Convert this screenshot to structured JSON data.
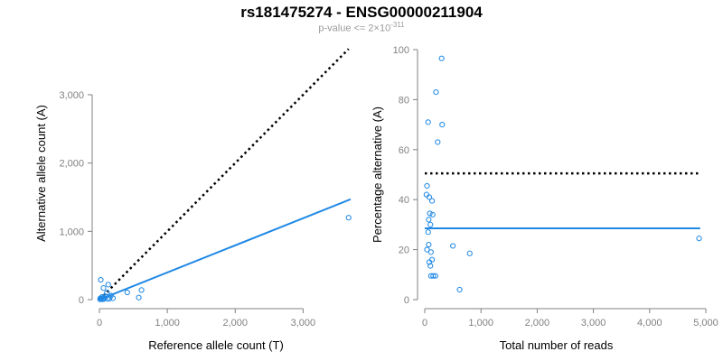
{
  "header": {
    "title": "rs181475274 - ENSG00000211904",
    "pvalue_prefix": "p-value <= 2×10",
    "pvalue_exponent": "-311"
  },
  "colors": {
    "series": "#1f88e5",
    "reference_line": "#000000",
    "axis": "#808080",
    "tick_label": "#808080"
  },
  "chart_data": [
    {
      "type": "scatter",
      "title": "",
      "xlabel": "Reference allele count (T)",
      "ylabel": "Alternative allele count (A)",
      "xlim": [
        0,
        3700
      ],
      "ylim": [
        0,
        3700
      ],
      "xticks": [
        0,
        1000,
        2000,
        3000
      ],
      "xtick_labels": [
        "0",
        "1,000",
        "2,000",
        "3,000"
      ],
      "yticks": [
        0,
        1000,
        2000,
        3000
      ],
      "ytick_labels": [
        "0",
        "1,000",
        "2,000",
        "3,000"
      ],
      "grid": false,
      "legend": "none",
      "points": [
        {
          "x": 3670,
          "y": 1200
        },
        {
          "x": 20,
          "y": 290
        },
        {
          "x": 130,
          "y": 220
        },
        {
          "x": 60,
          "y": 170
        },
        {
          "x": 620,
          "y": 140
        },
        {
          "x": 410,
          "y": 105
        },
        {
          "x": 110,
          "y": 100
        },
        {
          "x": 170,
          "y": 60
        },
        {
          "x": 90,
          "y": 50
        },
        {
          "x": 40,
          "y": 40
        },
        {
          "x": 60,
          "y": 30
        },
        {
          "x": 580,
          "y": 30
        },
        {
          "x": 15,
          "y": 20
        },
        {
          "x": 30,
          "y": 15
        },
        {
          "x": 150,
          "y": 15
        },
        {
          "x": 200,
          "y": 20
        },
        {
          "x": 25,
          "y": 10
        },
        {
          "x": 70,
          "y": 10
        },
        {
          "x": 120,
          "y": 10
        },
        {
          "x": 45,
          "y": 5
        },
        {
          "x": 10,
          "y": 5
        }
      ],
      "fit_line": {
        "x": [
          0,
          3700
        ],
        "y": [
          0,
          1470
        ]
      },
      "reference_line": {
        "x": [
          0,
          3670
        ],
        "y": [
          0,
          3670
        ]
      }
    },
    {
      "type": "scatter",
      "title": "",
      "xlabel": "Total number of reads",
      "ylabel": "Percentage alternative (A)",
      "xlim": [
        0,
        5000
      ],
      "ylim": [
        0,
        100
      ],
      "xticks": [
        0,
        1000,
        2000,
        3000,
        4000,
        5000
      ],
      "xtick_labels": [
        "0",
        "1,000",
        "2,000",
        "3,000",
        "4,000",
        "5,000"
      ],
      "yticks": [
        0,
        20,
        40,
        60,
        80,
        100
      ],
      "ytick_labels": [
        "0",
        "20",
        "40",
        "60",
        "80",
        "100"
      ],
      "grid": false,
      "legend": "none",
      "points": [
        {
          "x": 300,
          "y": 96.5
        },
        {
          "x": 200,
          "y": 83
        },
        {
          "x": 60,
          "y": 71
        },
        {
          "x": 310,
          "y": 70
        },
        {
          "x": 230,
          "y": 63
        },
        {
          "x": 40,
          "y": 45.5
        },
        {
          "x": 30,
          "y": 42
        },
        {
          "x": 80,
          "y": 41
        },
        {
          "x": 130,
          "y": 39.5
        },
        {
          "x": 90,
          "y": 34.5
        },
        {
          "x": 140,
          "y": 34
        },
        {
          "x": 70,
          "y": 32
        },
        {
          "x": 100,
          "y": 30
        },
        {
          "x": 60,
          "y": 27
        },
        {
          "x": 70,
          "y": 22
        },
        {
          "x": 500,
          "y": 21.5
        },
        {
          "x": 40,
          "y": 20
        },
        {
          "x": 110,
          "y": 19
        },
        {
          "x": 800,
          "y": 18.5
        },
        {
          "x": 130,
          "y": 16
        },
        {
          "x": 80,
          "y": 15
        },
        {
          "x": 100,
          "y": 13.5
        },
        {
          "x": 110,
          "y": 9.5
        },
        {
          "x": 150,
          "y": 9.5
        },
        {
          "x": 190,
          "y": 9.5
        },
        {
          "x": 620,
          "y": 4
        },
        {
          "x": 4880,
          "y": 24.5
        }
      ],
      "fit_line": {
        "x": [
          0,
          4900
        ],
        "y": [
          28.5,
          28.5
        ]
      },
      "reference_line": {
        "x": [
          0,
          4900
        ],
        "y": [
          50.5,
          50.5
        ]
      }
    }
  ]
}
